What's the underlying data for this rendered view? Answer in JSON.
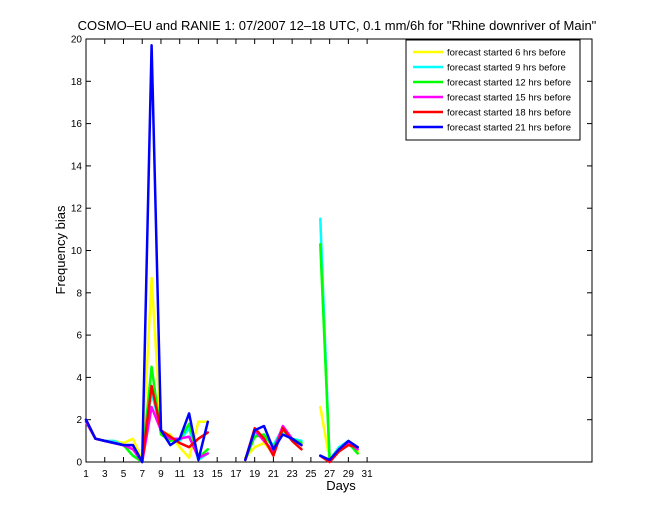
{
  "chart_data": {
    "type": "line",
    "title": "COSMO–EU and RANIE 1: 07/2007 12–18 UTC, 0.1 mm/6h for \"Rhine downriver of Main\"",
    "xlabel": "Days",
    "ylabel": "Frequency bias",
    "xlim": [
      1,
      55
    ],
    "ylim": [
      0,
      20
    ],
    "xticks": [
      1,
      3,
      5,
      7,
      9,
      11,
      13,
      15,
      17,
      19,
      21,
      23,
      25,
      27,
      29,
      31
    ],
    "yticks": [
      0,
      2,
      4,
      6,
      8,
      10,
      12,
      14,
      16,
      18,
      20
    ],
    "grid": false,
    "legend_position": "top-right",
    "series": [
      {
        "name": "forecast started 6 hrs before",
        "color": "#ffff00",
        "points": [
          [
            1,
            1.9
          ],
          [
            2,
            1.1
          ],
          [
            3,
            1.0
          ],
          [
            4,
            1.0
          ],
          [
            5,
            0.9
          ],
          [
            6,
            1.1
          ],
          [
            7,
            0.1
          ],
          [
            8,
            8.7
          ],
          [
            9,
            1.4
          ],
          [
            10,
            1.3
          ],
          [
            11,
            0.7
          ],
          [
            12,
            0.2
          ],
          [
            13,
            1.9
          ],
          [
            14,
            1.9
          ],
          null,
          [
            18,
            0.2
          ],
          [
            19,
            0.7
          ],
          [
            20,
            0.9
          ],
          [
            21,
            0.4
          ],
          [
            22,
            1.7
          ],
          [
            23,
            1.1
          ],
          [
            24,
            0.8
          ],
          null,
          [
            26,
            2.6
          ],
          [
            27,
            0.1
          ],
          [
            28,
            0.7
          ],
          [
            29,
            0.9
          ],
          [
            30,
            0.5
          ]
        ]
      },
      {
        "name": "forecast started 9 hrs before",
        "color": "#00ffff",
        "points": [
          [
            1,
            2.0
          ],
          [
            2,
            1.1
          ],
          [
            3,
            1.0
          ],
          [
            4,
            1.0
          ],
          [
            5,
            0.8
          ],
          [
            6,
            0.3
          ],
          [
            7,
            0.1
          ],
          [
            8,
            3.3
          ],
          [
            9,
            1.5
          ],
          [
            10,
            1.1
          ],
          [
            11,
            1.0
          ],
          [
            12,
            1.6
          ],
          [
            13,
            0.1
          ],
          [
            14,
            0.4
          ],
          null,
          [
            18,
            0.1
          ],
          [
            19,
            1.3
          ],
          [
            20,
            1.2
          ],
          [
            21,
            0.8
          ],
          [
            22,
            1.6
          ],
          [
            23,
            1.1
          ],
          [
            24,
            1.0
          ],
          null,
          [
            26,
            11.5
          ],
          [
            27,
            0.1
          ],
          [
            28,
            0.7
          ],
          [
            29,
            1.0
          ],
          [
            30,
            0.6
          ]
        ]
      },
      {
        "name": "forecast started 12 hrs before",
        "color": "#00ff00",
        "points": [
          [
            1,
            1.9
          ],
          [
            2,
            1.1
          ],
          [
            3,
            1.0
          ],
          [
            4,
            0.9
          ],
          [
            5,
            0.8
          ],
          [
            6,
            0.3
          ],
          [
            7,
            0.0
          ],
          [
            8,
            4.5
          ],
          [
            9,
            1.3
          ],
          [
            10,
            1.0
          ],
          [
            11,
            1.1
          ],
          [
            12,
            1.8
          ],
          [
            13,
            0.2
          ],
          [
            14,
            0.6
          ],
          null,
          [
            18,
            0.1
          ],
          [
            19,
            1.2
          ],
          [
            20,
            1.3
          ],
          [
            21,
            0.7
          ],
          [
            22,
            1.5
          ],
          [
            23,
            1.1
          ],
          [
            24,
            0.9
          ],
          null,
          [
            26,
            10.3
          ],
          [
            27,
            0.1
          ],
          [
            28,
            0.6
          ],
          [
            29,
            0.9
          ],
          [
            30,
            0.4
          ]
        ]
      },
      {
        "name": "forecast started 15 hrs before",
        "color": "#ff00ff",
        "points": [
          [
            1,
            1.9
          ],
          [
            2,
            1.1
          ],
          [
            3,
            1.0
          ],
          [
            4,
            0.9
          ],
          [
            5,
            0.8
          ],
          [
            6,
            0.6
          ],
          [
            7,
            0.0
          ],
          [
            8,
            2.6
          ],
          [
            9,
            1.5
          ],
          [
            10,
            1.1
          ],
          [
            11,
            1.1
          ],
          [
            12,
            1.2
          ],
          [
            13,
            0.2
          ],
          [
            14,
            0.4
          ],
          null,
          [
            18,
            0.1
          ],
          [
            19,
            1.5
          ],
          [
            20,
            1.0
          ],
          [
            21,
            0.5
          ],
          [
            22,
            1.7
          ],
          [
            23,
            1.1
          ],
          [
            24,
            0.8
          ],
          null,
          [
            26,
            0.3
          ],
          [
            27,
            0.0
          ],
          [
            28,
            0.6
          ],
          [
            29,
            0.9
          ],
          [
            30,
            0.6
          ]
        ]
      },
      {
        "name": "forecast started 18 hrs before",
        "color": "#ff0000",
        "points": [
          [
            1,
            2.0
          ],
          [
            2,
            1.1
          ],
          [
            3,
            1.0
          ],
          [
            4,
            0.9
          ],
          [
            5,
            0.8
          ],
          [
            6,
            0.8
          ],
          [
            7,
            0.0
          ],
          [
            8,
            3.6
          ],
          [
            9,
            1.5
          ],
          [
            10,
            1.2
          ],
          [
            11,
            0.9
          ],
          [
            12,
            0.7
          ],
          [
            13,
            1.1
          ],
          [
            14,
            1.4
          ],
          null,
          [
            18,
            0.1
          ],
          [
            19,
            1.6
          ],
          [
            20,
            1.1
          ],
          [
            21,
            0.3
          ],
          [
            22,
            1.6
          ],
          [
            23,
            1.0
          ],
          [
            24,
            0.6
          ],
          null,
          [
            26,
            0.3
          ],
          [
            27,
            0.0
          ],
          [
            28,
            0.5
          ],
          [
            29,
            0.8
          ],
          [
            30,
            0.7
          ]
        ]
      },
      {
        "name": "forecast started 21 hrs before",
        "color": "#0000ff",
        "points": [
          [
            1,
            2.0
          ],
          [
            2,
            1.1
          ],
          [
            3,
            1.0
          ],
          [
            4,
            0.9
          ],
          [
            5,
            0.8
          ],
          [
            6,
            0.8
          ],
          [
            7,
            0.0
          ],
          [
            8,
            19.7
          ],
          [
            9,
            1.5
          ],
          [
            10,
            0.8
          ],
          [
            11,
            1.1
          ],
          [
            12,
            2.3
          ],
          [
            13,
            0.1
          ],
          [
            14,
            1.9
          ],
          null,
          [
            18,
            0.1
          ],
          [
            19,
            1.5
          ],
          [
            20,
            1.7
          ],
          [
            21,
            0.6
          ],
          [
            22,
            1.3
          ],
          [
            23,
            1.1
          ],
          [
            24,
            0.8
          ],
          null,
          [
            26,
            0.3
          ],
          [
            27,
            0.1
          ],
          [
            28,
            0.6
          ],
          [
            29,
            1.0
          ],
          [
            30,
            0.7
          ]
        ]
      }
    ]
  }
}
